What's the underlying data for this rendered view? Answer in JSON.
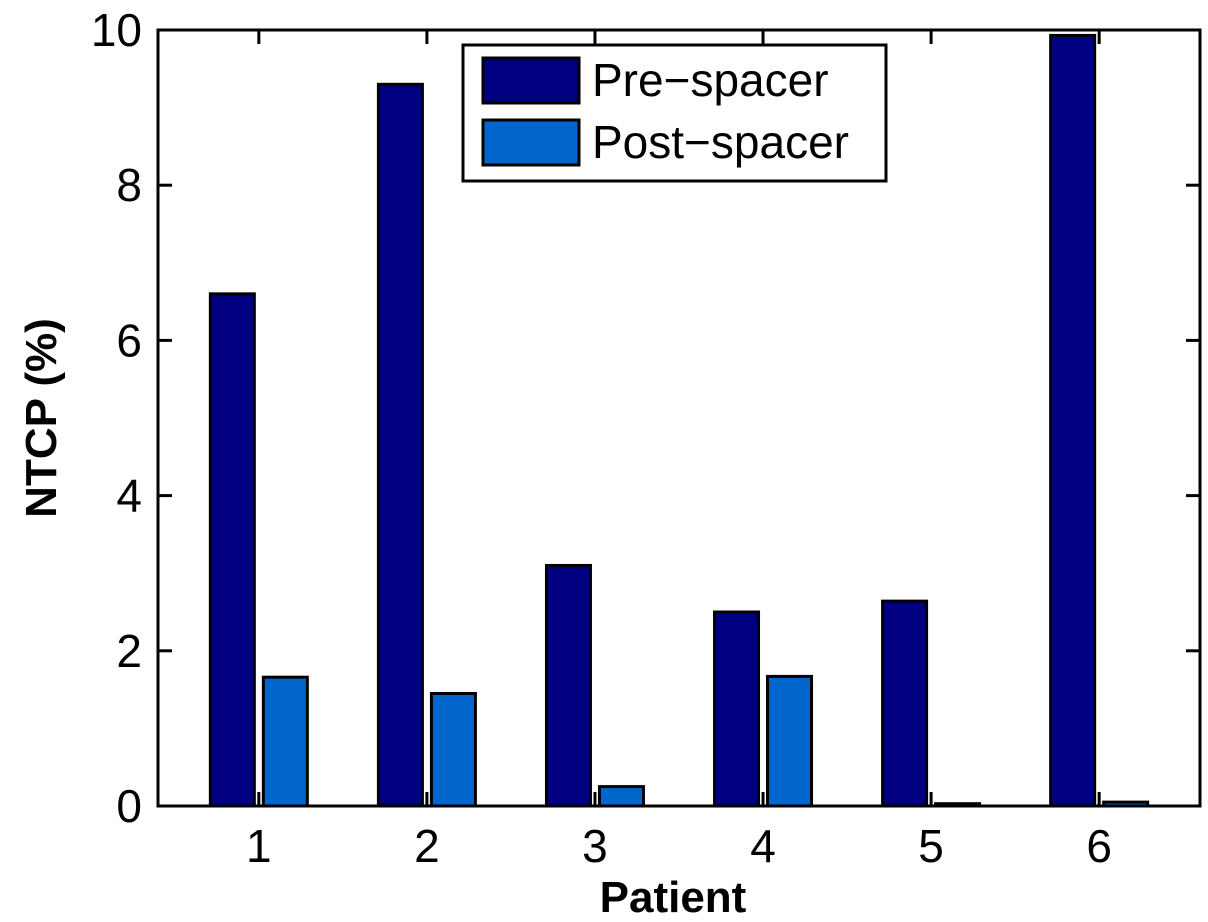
{
  "chart_data": {
    "type": "bar",
    "title": "",
    "xlabel": "Patient",
    "ylabel": "NTCP (%)",
    "categories": [
      "1",
      "2",
      "3",
      "4",
      "5",
      "6"
    ],
    "series": [
      {
        "name": "Pre−spacer",
        "color": "#000080",
        "values": [
          6.6,
          9.3,
          3.1,
          2.5,
          2.64,
          9.93
        ]
      },
      {
        "name": "Post−spacer",
        "color": "#0066cc",
        "values": [
          1.66,
          1.45,
          0.25,
          1.67,
          0.03,
          0.05
        ]
      }
    ],
    "ylim": [
      0,
      10
    ],
    "yticks": [
      "0",
      "2",
      "4",
      "6",
      "8",
      "10"
    ],
    "grid": false,
    "legend_position": "top-center"
  }
}
